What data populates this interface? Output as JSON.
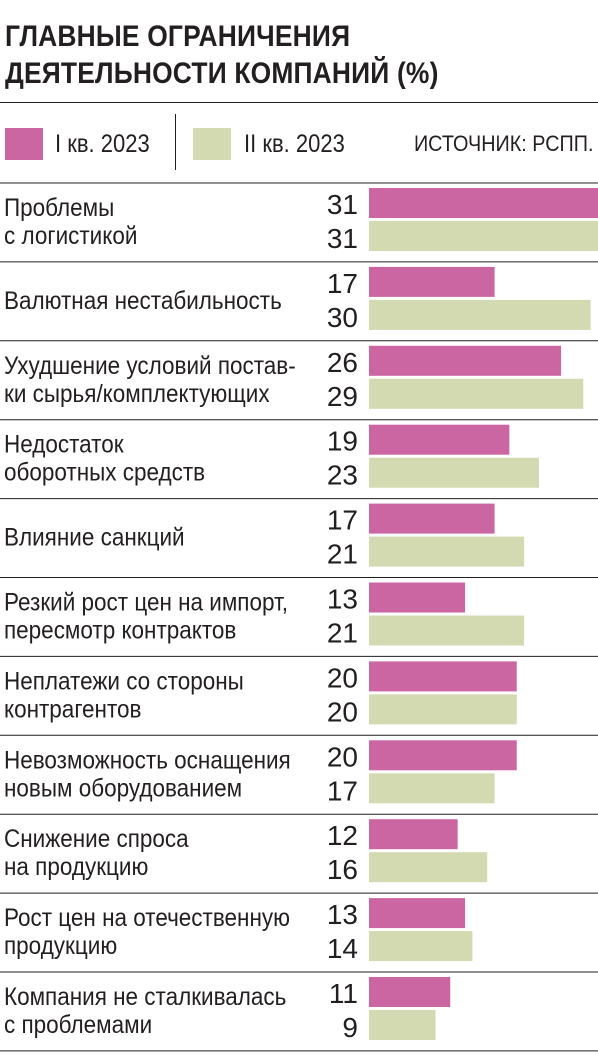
{
  "title_lines": [
    "ГЛАВНЫЕ ОГРАНИЧЕНИЯ",
    "ДЕЯТЕЛЬНОСТИ КОМПАНИЙ (%)"
  ],
  "legend": {
    "series1": "I кв. 2023",
    "series2": "II кв. 2023",
    "source": "ИСТОЧНИК: РСПП."
  },
  "colors": {
    "series1": "#cc66a3",
    "series2": "#d3d9b1",
    "text": "#231f20"
  },
  "chart_data": {
    "type": "bar",
    "orientation": "horizontal",
    "title": "ГЛАВНЫЕ ОГРАНИЧЕНИЯ ДЕЯТЕЛЬНОСТИ КОМПАНИЙ (%)",
    "categories": [
      [
        "Проблемы",
        "с логистикой"
      ],
      [
        "Валютная нестабильность"
      ],
      [
        "Ухудшение условий постав-",
        "ки сырья/комплектующих"
      ],
      [
        "Недостаток",
        "оборотных средств"
      ],
      [
        "Влияние санкций"
      ],
      [
        "Резкий рост цен на импорт,",
        "пересмотр контрактов"
      ],
      [
        "Неплатежи со стороны",
        "контрагентов"
      ],
      [
        "Невозможность оснащения",
        "новым оборудованием"
      ],
      [
        "Снижение спроса",
        "на продукцию"
      ],
      [
        "Рост цен на отечественную",
        "продукцию"
      ],
      [
        "Компания не сталкивалась",
        "с проблемами"
      ]
    ],
    "series": [
      {
        "name": "I кв. 2023",
        "values": [
          31,
          17,
          26,
          19,
          17,
          13,
          20,
          20,
          12,
          13,
          11
        ]
      },
      {
        "name": "II кв. 2023",
        "values": [
          31,
          30,
          29,
          23,
          21,
          21,
          20,
          17,
          16,
          14,
          9
        ]
      }
    ],
    "xlim": [
      0,
      31
    ],
    "grid": false,
    "legend_position": "top"
  }
}
